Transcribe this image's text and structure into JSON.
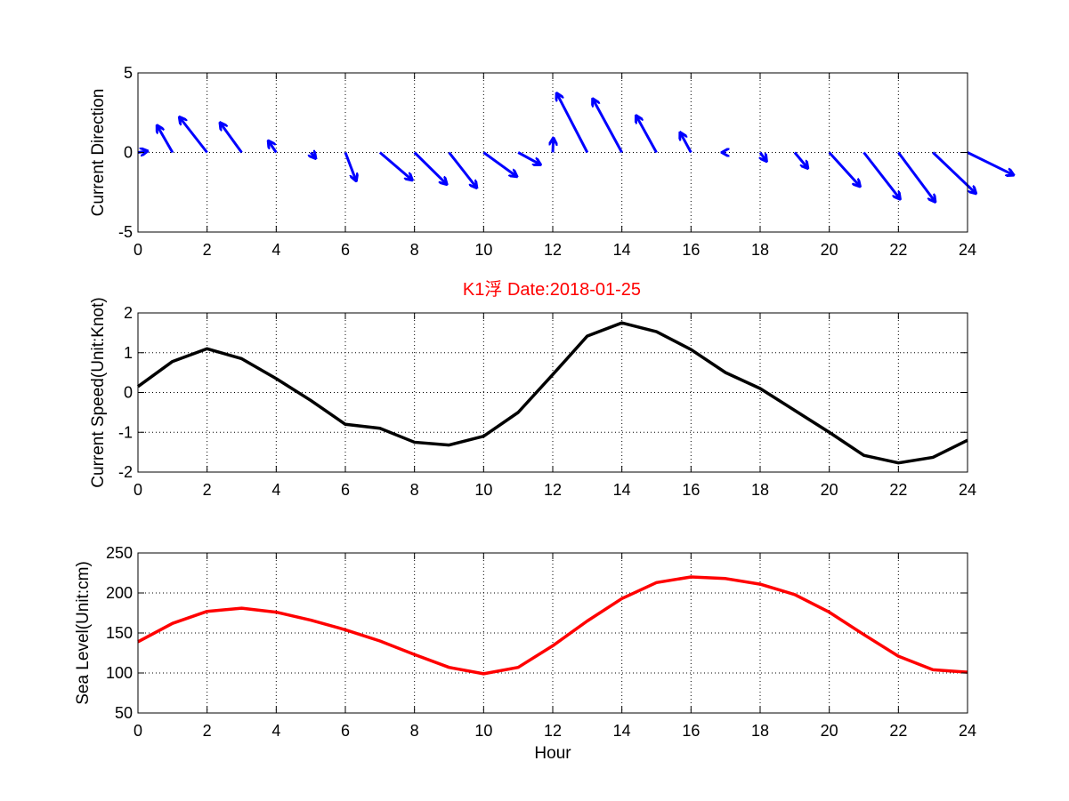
{
  "title": "K1浮    Date:2018-01-25",
  "colors": {
    "direction": "#0000ff",
    "speed": "#000000",
    "sea_level": "#ff0000",
    "title": "#ff0000"
  },
  "chart_data": [
    {
      "type": "quiver",
      "ylabel": "Current Direction",
      "xlabel": "",
      "xlim": [
        0,
        24
      ],
      "ylim": [
        -5,
        5
      ],
      "xticks": [
        0,
        2,
        4,
        6,
        8,
        10,
        12,
        14,
        16,
        18,
        20,
        22,
        24
      ],
      "yticks": [
        -5,
        0,
        5
      ],
      "grid": true,
      "x": [
        0,
        1,
        2,
        3,
        4,
        5,
        6,
        7,
        8,
        9,
        10,
        11,
        12,
        13,
        14,
        15,
        16,
        17,
        18,
        19,
        20,
        21,
        22,
        23,
        24
      ],
      "u": [
        0.3,
        -0.5,
        -0.9,
        -0.7,
        -0.25,
        0.15,
        0.35,
        1.05,
        1.05,
        0.9,
        1.08,
        0.72,
        0.02,
        -1.0,
        -0.95,
        -0.66,
        -0.35,
        -0.1,
        0.2,
        0.42,
        1.0,
        1.18,
        1.2,
        1.4,
        1.5
      ],
      "v": [
        0.1,
        1.9,
        2.5,
        2.1,
        0.8,
        -0.4,
        -2.0,
        -1.95,
        -2.25,
        -2.5,
        -1.7,
        -0.85,
        1.0,
        4.2,
        3.8,
        2.6,
        1.4,
        0.0,
        -0.6,
        -1.1,
        -2.4,
        -3.3,
        -3.5,
        -2.9,
        -1.6
      ]
    },
    {
      "type": "line",
      "ylabel": "Current Speed(Unit:Knot)",
      "xlabel": "",
      "xlim": [
        0,
        24
      ],
      "ylim": [
        -2,
        2
      ],
      "xticks": [
        0,
        2,
        4,
        6,
        8,
        10,
        12,
        14,
        16,
        18,
        20,
        22,
        24
      ],
      "yticks": [
        -2,
        -1,
        0,
        1,
        2
      ],
      "grid": true,
      "x": [
        0,
        1,
        2,
        3,
        4,
        5,
        6,
        7,
        8,
        9,
        10,
        11,
        12,
        13,
        14,
        15,
        16,
        17,
        18,
        19,
        20,
        21,
        22,
        23,
        24
      ],
      "y": [
        0.15,
        0.78,
        1.1,
        0.85,
        0.35,
        -0.2,
        -0.8,
        -0.9,
        -1.25,
        -1.32,
        -1.1,
        -0.5,
        0.45,
        1.42,
        1.75,
        1.53,
        1.08,
        0.5,
        0.1,
        -0.45,
        -1.0,
        -1.58,
        -1.77,
        -1.63,
        -1.2
      ]
    },
    {
      "type": "line",
      "ylabel": "Sea Level(Unit:cm)",
      "xlabel": "Hour",
      "xlim": [
        0,
        24
      ],
      "ylim": [
        50,
        250
      ],
      "xticks": [
        0,
        2,
        4,
        6,
        8,
        10,
        12,
        14,
        16,
        18,
        20,
        22,
        24
      ],
      "yticks": [
        50,
        100,
        150,
        200,
        250
      ],
      "grid": true,
      "x": [
        0,
        1,
        2,
        3,
        4,
        5,
        6,
        7,
        8,
        9,
        10,
        11,
        12,
        13,
        14,
        15,
        16,
        17,
        18,
        19,
        20,
        21,
        22,
        23,
        24
      ],
      "y": [
        139,
        162,
        177,
        181,
        176,
        166,
        154,
        140,
        123,
        107,
        99,
        107,
        134,
        165,
        193,
        213,
        220,
        218,
        211,
        198,
        176,
        148,
        121,
        104,
        101
      ]
    }
  ]
}
